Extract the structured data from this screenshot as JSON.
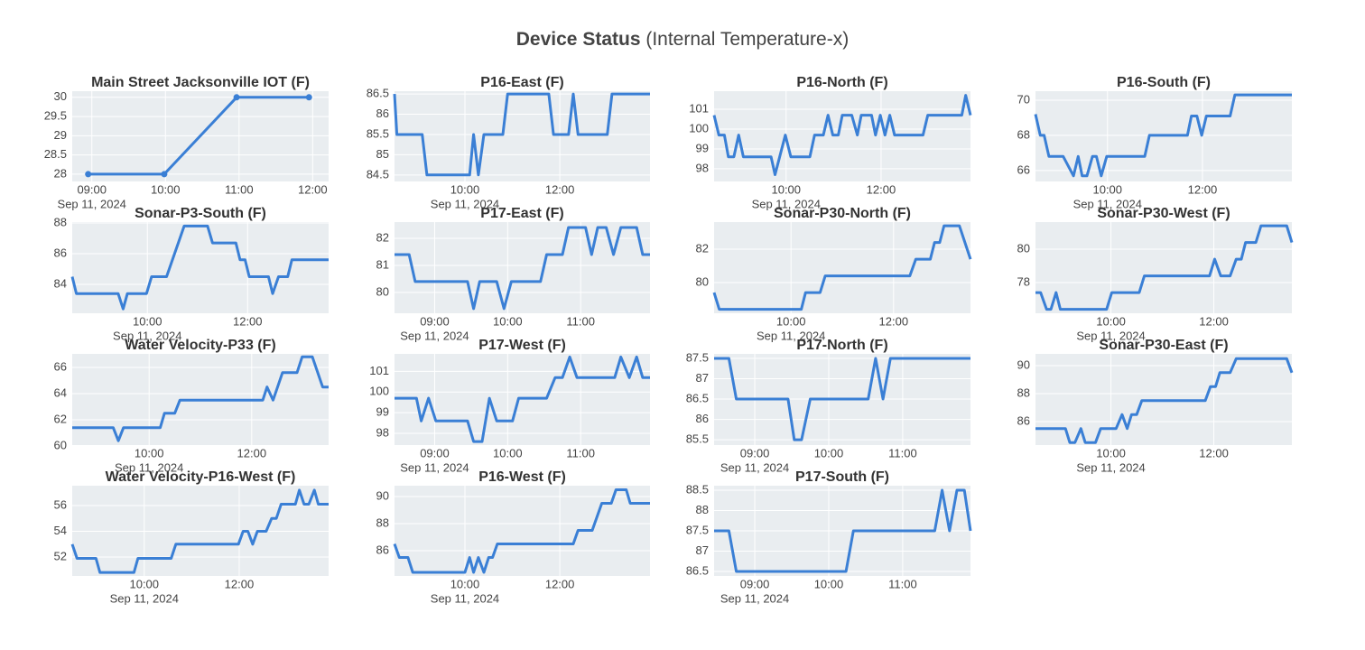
{
  "title": "Device Status",
  "subtitle": "(Internal Temperature-x)",
  "chart_data": [
    {
      "type": "line",
      "mode": "lines+markers",
      "title": "Main Street Jacksonville IOT (F)",
      "x": [
        "08:57",
        "09:59",
        "10:58",
        "11:57"
      ],
      "values": [
        28,
        28,
        30,
        30
      ],
      "color": "#3a7fd5",
      "xlim": [
        "08:44",
        "12:13"
      ],
      "xticks": [
        "09:00",
        "10:00",
        "11:00",
        "12:00"
      ],
      "xdate": "Sep 11, 2024",
      "ylim": [
        27.81,
        30.16
      ],
      "yticks": [
        28,
        28.5,
        29,
        29.5,
        30
      ],
      "grid": true
    },
    {
      "type": "line",
      "title": "P16-East (F)",
      "x": [
        "08:31",
        "08:34",
        "09:06",
        "09:12",
        "10:06",
        "10:11",
        "10:17",
        "10:24",
        "10:48",
        "10:54",
        "11:46",
        "11:52",
        "12:11",
        "12:17",
        "12:23",
        "13:00",
        "13:06",
        "13:54"
      ],
      "values": [
        86.5,
        85.5,
        85.5,
        84.5,
        84.5,
        85.5,
        84.5,
        85.5,
        85.5,
        86.5,
        86.5,
        85.5,
        85.5,
        86.5,
        85.5,
        85.5,
        86.5,
        86.5
      ],
      "color": "#3a7fd5",
      "xlim": [
        "08:31",
        "13:54"
      ],
      "xticks": [
        "10:00",
        "12:00"
      ],
      "xdate": "Sep 11, 2024",
      "ylim": [
        84.34,
        86.57
      ],
      "yticks": [
        84.5,
        85,
        85.5,
        86,
        86.5
      ],
      "grid": true
    },
    {
      "type": "line",
      "title": "P16-North (F)",
      "x": [
        "08:29",
        "08:35",
        "08:42",
        "08:47",
        "08:54",
        "09:00",
        "09:06",
        "09:41",
        "09:46",
        "09:59",
        "10:06",
        "10:30",
        "10:36",
        "10:47",
        "10:53",
        "10:59",
        "11:06",
        "11:11",
        "11:23",
        "11:30",
        "11:35",
        "11:48",
        "11:53",
        "11:59",
        "12:05",
        "12:11",
        "12:17",
        "12:53",
        "12:59",
        "13:42",
        "13:47",
        "13:53"
      ],
      "values": [
        100.7,
        99.7,
        99.7,
        98.6,
        98.6,
        99.7,
        98.6,
        98.6,
        97.7,
        99.7,
        98.6,
        98.6,
        99.7,
        99.7,
        100.7,
        99.7,
        99.7,
        100.7,
        100.7,
        99.7,
        100.7,
        100.7,
        99.7,
        100.7,
        99.7,
        100.7,
        99.7,
        99.7,
        100.7,
        100.7,
        101.7,
        100.7
      ],
      "color": "#3a7fd5",
      "xlim": [
        "08:29",
        "13:53"
      ],
      "xticks": [
        "10:00",
        "12:00"
      ],
      "xdate": "Sep 11, 2024",
      "ylim": [
        97.36,
        101.91
      ],
      "yticks": [
        98,
        99,
        100,
        101
      ],
      "grid": true
    },
    {
      "type": "line",
      "title": "P16-South (F)",
      "x": [
        "08:29",
        "08:35",
        "08:40",
        "08:46",
        "09:04",
        "09:17",
        "09:23",
        "09:28",
        "09:34",
        "09:41",
        "09:46",
        "09:52",
        "09:59",
        "10:47",
        "10:53",
        "11:41",
        "11:46",
        "11:53",
        "11:59",
        "12:05",
        "12:35",
        "12:41",
        "13:53"
      ],
      "values": [
        69.2,
        68.0,
        68.0,
        66.8,
        66.8,
        65.7,
        66.8,
        65.7,
        65.7,
        66.8,
        66.8,
        65.7,
        66.8,
        66.8,
        68.0,
        68.0,
        69.1,
        69.1,
        68.0,
        69.1,
        69.1,
        70.3,
        70.3
      ],
      "color": "#3a7fd5",
      "xlim": [
        "08:29",
        "13:53"
      ],
      "xticks": [
        "10:00",
        "12:00"
      ],
      "xdate": "Sep 11, 2024",
      "ylim": [
        65.38,
        70.51
      ],
      "yticks": [
        66,
        68,
        70
      ],
      "grid": true
    },
    {
      "type": "line",
      "title": "Sonar-P3-South (F)",
      "x": [
        "08:30",
        "08:35",
        "09:25",
        "09:31",
        "09:36",
        "09:59",
        "10:05",
        "10:23",
        "10:44",
        "11:12",
        "11:18",
        "11:46",
        "11:51",
        "11:57",
        "12:02",
        "12:25",
        "12:30",
        "12:37",
        "12:48",
        "12:53",
        "13:37"
      ],
      "values": [
        84.5,
        83.4,
        83.4,
        82.4,
        83.4,
        83.4,
        84.5,
        84.5,
        87.8,
        87.8,
        86.7,
        86.7,
        85.6,
        85.6,
        84.5,
        84.5,
        83.4,
        84.5,
        84.5,
        85.6,
        85.6
      ],
      "color": "#3a7fd5",
      "xlim": [
        "08:30",
        "13:37"
      ],
      "xticks": [
        "10:00",
        "12:00"
      ],
      "xdate": "Sep 11, 2024",
      "ylim": [
        82.12,
        88.06
      ],
      "yticks": [
        84,
        86,
        88
      ],
      "grid": true
    },
    {
      "type": "line",
      "title": "P17-East (F)",
      "x": [
        "08:27",
        "08:39",
        "08:44",
        "09:27",
        "09:32",
        "09:37",
        "09:51",
        "09:57",
        "10:03",
        "10:27",
        "10:32",
        "10:45",
        "10:50",
        "11:04",
        "11:09",
        "11:14",
        "11:21",
        "11:27",
        "11:33",
        "11:46",
        "11:51",
        "11:57"
      ],
      "values": [
        81.4,
        81.4,
        80.4,
        80.4,
        79.4,
        80.4,
        80.4,
        79.4,
        80.4,
        80.4,
        81.4,
        81.4,
        82.4,
        82.4,
        81.4,
        82.4,
        82.4,
        81.4,
        82.4,
        82.4,
        81.4,
        81.4
      ],
      "color": "#3a7fd5",
      "xlim": [
        "08:27",
        "11:57"
      ],
      "xticks": [
        "09:00",
        "10:00",
        "11:00"
      ],
      "xdate": "Sep 11, 2024",
      "ylim": [
        79.23,
        82.6
      ],
      "yticks": [
        80,
        81,
        82
      ],
      "grid": true
    },
    {
      "type": "line",
      "title": "Sonar-P30-North (F)",
      "x": [
        "08:30",
        "08:36",
        "10:12",
        "10:17",
        "10:34",
        "10:40",
        "12:19",
        "12:26",
        "12:43",
        "12:48",
        "12:54",
        "12:59",
        "13:17",
        "13:30"
      ],
      "values": [
        79.4,
        78.4,
        78.4,
        79.4,
        79.4,
        80.4,
        80.4,
        81.4,
        81.4,
        82.4,
        82.4,
        83.4,
        83.4,
        81.4
      ],
      "color": "#3a7fd5",
      "xlim": [
        "08:30",
        "13:30"
      ],
      "xticks": [
        "10:00",
        "12:00"
      ],
      "xdate": "Sep 11, 2024",
      "ylim": [
        78.16,
        83.62
      ],
      "yticks": [
        80,
        82
      ],
      "grid": true
    },
    {
      "type": "line",
      "title": "Sonar-P30-West (F)",
      "x": [
        "08:32",
        "08:38",
        "08:45",
        "08:50",
        "08:56",
        "09:01",
        "09:55",
        "10:01",
        "10:33",
        "10:39",
        "11:55",
        "12:01",
        "12:08",
        "12:19",
        "12:26",
        "12:32",
        "12:37",
        "12:49",
        "12:55",
        "13:25",
        "13:31"
      ],
      "values": [
        77.4,
        77.4,
        76.4,
        76.4,
        77.4,
        76.4,
        76.4,
        77.4,
        77.4,
        78.4,
        78.4,
        79.4,
        78.4,
        78.4,
        79.4,
        79.4,
        80.4,
        80.4,
        81.4,
        81.4,
        80.4
      ],
      "color": "#3a7fd5",
      "xlim": [
        "08:32",
        "13:31"
      ],
      "xticks": [
        "10:00",
        "12:00"
      ],
      "xdate": "Sep 11, 2024",
      "ylim": [
        76.16,
        81.62
      ],
      "yticks": [
        78,
        80
      ],
      "grid": true
    },
    {
      "type": "line",
      "title": "Water Velocity-P33 (F)",
      "x": [
        "08:30",
        "09:18",
        "09:24",
        "09:30",
        "10:13",
        "10:18",
        "10:30",
        "10:36",
        "12:13",
        "12:18",
        "12:25",
        "12:36",
        "12:53",
        "12:59",
        "13:11",
        "13:23",
        "13:30"
      ],
      "values": [
        61.4,
        61.4,
        60.4,
        61.4,
        61.4,
        62.5,
        62.5,
        63.5,
        63.5,
        64.5,
        63.5,
        65.6,
        65.6,
        66.8,
        66.8,
        64.5,
        64.5
      ],
      "color": "#3a7fd5",
      "xlim": [
        "08:30",
        "13:30"
      ],
      "xticks": [
        "10:00",
        "12:00"
      ],
      "xdate": "Sep 11, 2024",
      "ylim": [
        60.07,
        67.03
      ],
      "yticks": [
        60,
        62,
        64,
        66
      ],
      "grid": true
    },
    {
      "type": "line",
      "title": "P17-West (F)",
      "x": [
        "08:27",
        "08:45",
        "08:49",
        "08:55",
        "09:01",
        "09:27",
        "09:32",
        "09:39",
        "09:45",
        "09:51",
        "10:04",
        "10:09",
        "10:32",
        "10:39",
        "10:45",
        "10:51",
        "10:57",
        "11:28",
        "11:33",
        "11:40",
        "11:46",
        "11:51",
        "11:57"
      ],
      "values": [
        99.7,
        99.7,
        98.6,
        99.7,
        98.6,
        98.6,
        97.6,
        97.6,
        99.7,
        98.6,
        98.6,
        99.7,
        99.7,
        100.7,
        100.7,
        101.7,
        100.7,
        100.7,
        101.7,
        100.7,
        101.7,
        100.7,
        100.7
      ],
      "color": "#3a7fd5",
      "xlim": [
        "08:27",
        "11:57"
      ],
      "xticks": [
        "09:00",
        "10:00",
        "11:00"
      ],
      "xdate": "Sep 11, 2024",
      "ylim": [
        97.43,
        101.85
      ],
      "yticks": [
        98,
        99,
        100,
        101
      ],
      "grid": true
    },
    {
      "type": "line",
      "title": "P17-North (F)",
      "x": [
        "08:27",
        "08:39",
        "08:45",
        "09:27",
        "09:32",
        "09:38",
        "09:45",
        "10:32",
        "10:38",
        "10:44",
        "10:50",
        "11:55"
      ],
      "values": [
        87.5,
        87.5,
        86.5,
        86.5,
        85.5,
        85.5,
        86.5,
        86.5,
        87.5,
        86.5,
        87.5,
        87.5
      ],
      "color": "#3a7fd5",
      "xlim": [
        "08:27",
        "11:55"
      ],
      "xticks": [
        "09:00",
        "10:00",
        "11:00"
      ],
      "xdate": "Sep 11, 2024",
      "ylim": [
        85.37,
        87.61
      ],
      "yticks": [
        85.5,
        86,
        86.5,
        87,
        87.5
      ],
      "grid": true
    },
    {
      "type": "line",
      "title": "Sonar-P30-East (F)",
      "x": [
        "08:32",
        "09:07",
        "09:12",
        "09:18",
        "09:25",
        "09:30",
        "09:42",
        "09:48",
        "10:06",
        "10:13",
        "10:19",
        "10:24",
        "10:30",
        "10:36",
        "11:50",
        "11:56",
        "12:02",
        "12:07",
        "12:19",
        "12:26",
        "13:25",
        "13:31"
      ],
      "values": [
        85.5,
        85.5,
        84.5,
        84.5,
        85.5,
        84.5,
        84.5,
        85.5,
        85.5,
        86.5,
        85.5,
        86.5,
        86.5,
        87.5,
        87.5,
        88.5,
        88.5,
        89.5,
        89.5,
        90.5,
        90.5,
        89.5
      ],
      "color": "#3a7fd5",
      "xlim": [
        "08:32",
        "13:31"
      ],
      "xticks": [
        "10:00",
        "12:00"
      ],
      "xdate": "Sep 11, 2024",
      "ylim": [
        84.32,
        90.84
      ],
      "yticks": [
        86,
        88,
        90
      ],
      "grid": true
    },
    {
      "type": "line",
      "title": "Water Velocity-P16-West (F)",
      "x": [
        "08:29",
        "08:35",
        "08:59",
        "09:04",
        "09:47",
        "09:52",
        "10:34",
        "10:40",
        "11:59",
        "12:05",
        "12:11",
        "12:17",
        "12:23",
        "12:34",
        "12:41",
        "12:47",
        "12:53",
        "13:11",
        "13:16",
        "13:22",
        "13:28",
        "13:35",
        "13:40",
        "13:53"
      ],
      "values": [
        53.0,
        51.9,
        51.9,
        50.8,
        50.8,
        51.9,
        51.9,
        53.0,
        53.0,
        54.0,
        54.0,
        53.0,
        54.0,
        54.0,
        55.0,
        55.0,
        56.1,
        56.1,
        57.2,
        56.1,
        56.1,
        57.2,
        56.1,
        56.1
      ],
      "color": "#3a7fd5",
      "xlim": [
        "08:29",
        "13:53"
      ],
      "xticks": [
        "10:00",
        "12:00"
      ],
      "xdate": "Sep 11, 2024",
      "ylim": [
        50.53,
        57.54
      ],
      "yticks": [
        52,
        54,
        56
      ],
      "grid": true
    },
    {
      "type": "line",
      "title": "P16-West (F)",
      "x": [
        "08:31",
        "08:37",
        "08:48",
        "08:54",
        "10:00",
        "10:06",
        "10:11",
        "10:17",
        "10:24",
        "10:30",
        "10:35",
        "10:41",
        "12:17",
        "12:23",
        "12:41",
        "12:53",
        "13:05",
        "13:11",
        "13:24",
        "13:29",
        "13:54"
      ],
      "values": [
        86.5,
        85.5,
        85.5,
        84.4,
        84.4,
        85.5,
        84.4,
        85.5,
        84.4,
        85.5,
        85.5,
        86.5,
        86.5,
        87.5,
        87.5,
        89.5,
        89.5,
        90.5,
        90.5,
        89.5,
        89.5
      ],
      "color": "#3a7fd5",
      "xlim": [
        "08:31",
        "13:54"
      ],
      "xticks": [
        "10:00",
        "12:00"
      ],
      "xdate": "Sep 11, 2024",
      "ylim": [
        84.13,
        90.8
      ],
      "yticks": [
        86,
        88,
        90
      ],
      "grid": true
    },
    {
      "type": "line",
      "title": "P17-South (F)",
      "x": [
        "08:27",
        "08:39",
        "08:45",
        "10:14",
        "10:20",
        "11:26",
        "11:32",
        "11:38",
        "11:44",
        "11:50",
        "11:55"
      ],
      "values": [
        87.5,
        87.5,
        86.5,
        86.5,
        87.5,
        87.5,
        88.5,
        87.5,
        88.5,
        88.5,
        87.5
      ],
      "color": "#3a7fd5",
      "xlim": [
        "08:27",
        "11:55"
      ],
      "xticks": [
        "09:00",
        "10:00",
        "11:00"
      ],
      "xdate": "Sep 11, 2024",
      "ylim": [
        86.39,
        88.61
      ],
      "yticks": [
        86.5,
        87,
        87.5,
        88,
        88.5
      ],
      "grid": true
    }
  ]
}
